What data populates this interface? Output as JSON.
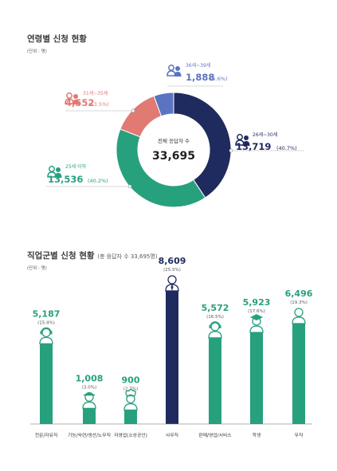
{
  "section1": {
    "title": "연령별 신청 현황",
    "unit": "(단위 : 명)"
  },
  "section2": {
    "title": "직업군별 신청 현황",
    "note": "(총 응답자 수 33,695명)",
    "unit": "(단위 : 명)"
  },
  "chart_data": [
    {
      "type": "pie",
      "title": "연령별 신청 현황",
      "center_label": "전체 응답자 수",
      "center_value": "33,695",
      "slices": [
        {
          "label": "26세~30세",
          "value": 13719,
          "value_text": "13,719",
          "percent_text": "(40.7%)",
          "color": "#1f2a5e"
        },
        {
          "label": "25세 이하",
          "value": 13536,
          "value_text": "13,536",
          "percent_text": "(40.2%)",
          "color": "#27a07e"
        },
        {
          "label": "31세~35세",
          "value": 4552,
          "value_text": "4,552",
          "percent_text": "(13.5%)",
          "color": "#e07a73"
        },
        {
          "label": "36세~39세",
          "value": 1888,
          "value_text": "1,888",
          "percent_text": "(5.6%)",
          "color": "#5b74c2"
        }
      ]
    },
    {
      "type": "bar",
      "title": "직업군별 신청 현황",
      "categories": [
        "전문/자유직",
        "기능/숙련/생산/노무직",
        "자영업(소상공인)",
        "사무직",
        "판매/영업/서비스",
        "학생",
        "무직"
      ],
      "values": [
        5187,
        1008,
        900,
        8609,
        5572,
        5923,
        6496
      ],
      "value_texts": [
        "5,187",
        "1,008",
        "900",
        "8,609",
        "5,572",
        "5,923",
        "6,496"
      ],
      "percent_texts": [
        "(15.4%)",
        "(3.0%)",
        "(2.7%)",
        "(25.5%)",
        "(16.5%)",
        "(17.6%)",
        "(19.3%)"
      ],
      "colors": [
        "#27a07e",
        "#27a07e",
        "#27a07e",
        "#1f2a5e",
        "#27a07e",
        "#27a07e",
        "#27a07e"
      ],
      "icons": [
        "headset-worker-icon",
        "hardhat-worker-icon",
        "chef-icon",
        "office-worker-icon",
        "call-agent-icon",
        "graduate-icon",
        "person-icon"
      ]
    }
  ]
}
